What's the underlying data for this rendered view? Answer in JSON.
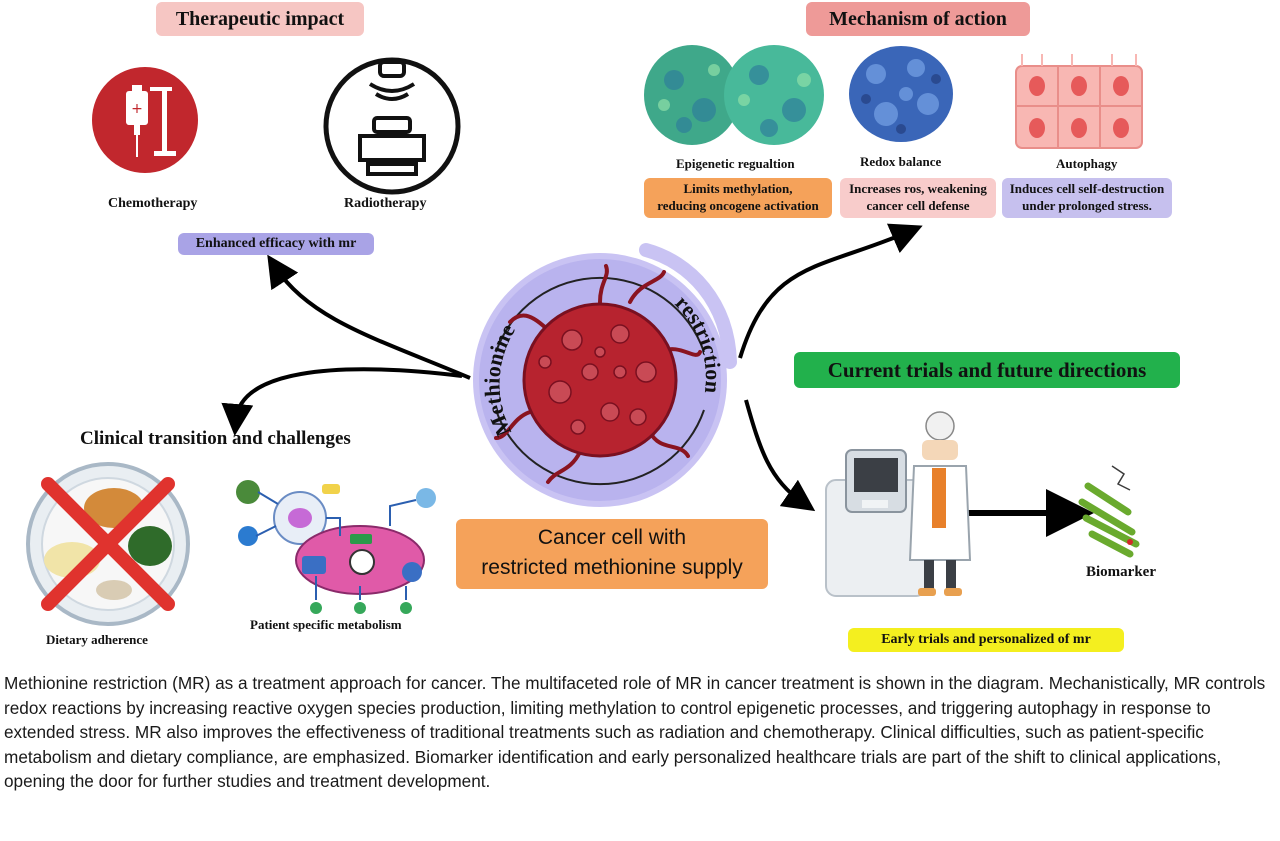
{
  "therapeutic": {
    "title": "Therapeutic impact",
    "chemo_label": "Chemotherapy",
    "radio_label": "Radiotherapy",
    "enhanced_label": "Enhanced efficacy with mr"
  },
  "mechanism": {
    "title": "Mechanism of action",
    "items": [
      {
        "label": "Epigenetic regualtion",
        "desc_1": "Limits methylation,",
        "desc_2": "reducing oncogene activation"
      },
      {
        "label": "Redox balance",
        "desc_1": "Increases ros, weakening",
        "desc_2": "cancer cell defense"
      },
      {
        "label": "Autophagy",
        "desc_1": "Induces cell self-destruction",
        "desc_2": "under prolonged stress."
      }
    ]
  },
  "center": {
    "arc_left": "Methionine",
    "arc_right": "restriction",
    "caption_1": "Cancer cell with",
    "caption_2": "restricted methionine supply"
  },
  "clinical": {
    "title": "Clinical transition and challenges",
    "diet_label": "Dietary adherence",
    "metab_label": "Patient specific metabolism"
  },
  "trials": {
    "title": "Current trials and future directions",
    "biomarker_label": "Biomarker",
    "early_label": "Early trials and personalized of mr"
  },
  "colors": {
    "therapeutic_title": "#f6c6c3",
    "mechanism_title": "#ee9a98",
    "trials_title": "#22b14c",
    "cancer_caption": "#f5a25a",
    "enhanced": "#a9a3e6",
    "early": "#f4ef1f",
    "cell_red": "#b7232f",
    "circle_lavender": "#b9b3ee"
  },
  "paragraph": "Methionine restriction (MR) as a treatment approach for cancer. The multifaceted role of MR in cancer treatment is shown in the diagram. Mechanistically, MR controls redox reactions by increasing reactive oxygen species production, limiting methylation to control epigenetic processes, and triggering autophagy in response to extended stress. MR also improves the effectiveness of traditional treatments such as radiation and chemotherapy. Clinical difficulties, such as patient-specific metabolism and dietary compliance, are emphasized. Biomarker identification and early personalized healthcare trials are part of the shift to clinical applications, opening the door for further studies and treatment development."
}
